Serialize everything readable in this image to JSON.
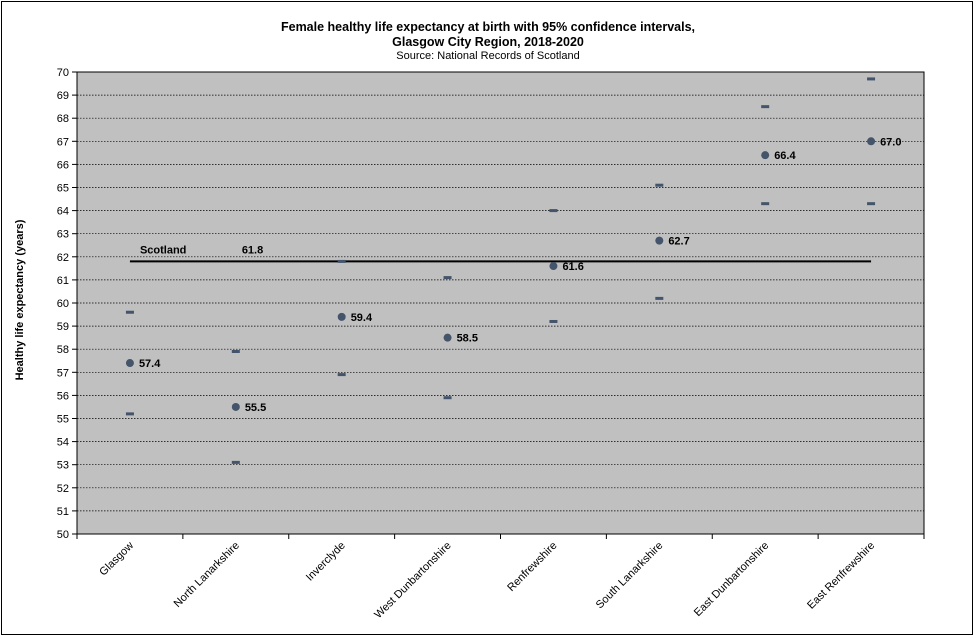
{
  "chart_data": {
    "type": "scatter",
    "title": "Female healthy life expectancy at birth with 95% confidence intervals,",
    "title_line2": "Glasgow City Region, 2018-2020",
    "subtitle": "Source: National Records of Scotland",
    "xlabel": "",
    "ylabel": "Healthy life expectancy (years)",
    "ylim": [
      50,
      70
    ],
    "y_ticks": [
      "50",
      "51",
      "52",
      "53",
      "54",
      "55",
      "56",
      "57",
      "58",
      "59",
      "60",
      "61",
      "62",
      "63",
      "64",
      "65",
      "66",
      "67",
      "68",
      "69",
      "70"
    ],
    "grid": true,
    "categories": [
      "Glasgow",
      "North Lanarkshire",
      "Inverclyde",
      "West Dunbartonshire",
      "Renfrewshire",
      "South Lanarkshire",
      "East Dunbartonshire",
      "East Renfrewshire"
    ],
    "values": [
      57.4,
      55.5,
      59.4,
      58.5,
      61.6,
      62.7,
      66.4,
      67.0
    ],
    "value_labels": [
      "57.4",
      "55.5",
      "59.4",
      "58.5",
      "61.6",
      "62.7",
      "66.4",
      "67.0"
    ],
    "ci_lower": [
      55.2,
      53.1,
      56.9,
      55.9,
      59.2,
      60.2,
      64.3,
      64.3
    ],
    "ci_upper": [
      59.6,
      57.9,
      61.8,
      61.1,
      64.0,
      65.1,
      68.5,
      69.7
    ],
    "reference": {
      "name": "Scotland",
      "value": 61.8,
      "label": "61.8"
    },
    "colors": {
      "plot_bg": "#c0c0c0",
      "marker": "#44546a",
      "reference_line": "#000000",
      "grid": "#000000"
    }
  }
}
